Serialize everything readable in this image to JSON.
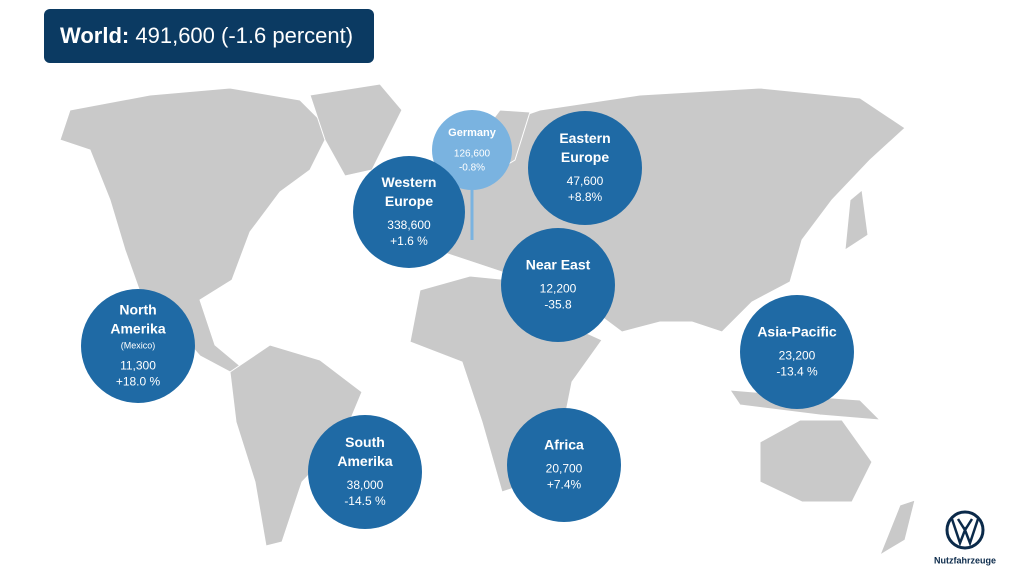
{
  "header": {
    "label": "World:",
    "value": "491,600 (-1.6 percent)"
  },
  "regions": [
    {
      "name": [
        "Germany"
      ],
      "value": "126,600",
      "change": "-0.8%"
    },
    {
      "name": [
        "Western",
        "Europe"
      ],
      "value": "338,600",
      "change": "+1.6 %"
    },
    {
      "name": [
        "Eastern",
        "Europe"
      ],
      "value": "47,600",
      "change": "+8.8%"
    },
    {
      "name": [
        "Near East"
      ],
      "value": "12,200",
      "change": "-35.8"
    },
    {
      "name": [
        "North",
        "Amerika"
      ],
      "note": "(Mexico)",
      "value": "11,300",
      "change": "+18.0 %"
    },
    {
      "name": [
        "Asia-Pacific"
      ],
      "value": "23,200",
      "change": "-13.4 %"
    },
    {
      "name": [
        "South",
        "Amerika"
      ],
      "value": "38,000",
      "change": "-14.5 %"
    },
    {
      "name": [
        "Africa"
      ],
      "value": "20,700",
      "change": "+7.4%"
    }
  ],
  "brand": "Nutzfahrzeuge"
}
